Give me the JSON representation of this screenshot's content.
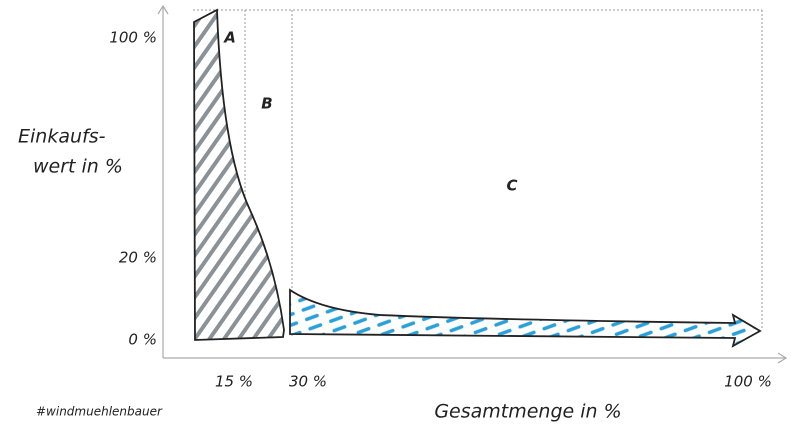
{
  "y_axis": {
    "label_lines": [
      "Einkaufs-",
      "wert in %"
    ],
    "ticks": [
      "100 %",
      "20 %",
      "0 %"
    ]
  },
  "x_axis": {
    "label": "Gesamtmenge in %",
    "ticks": [
      "15 %",
      "30 %",
      "100 %"
    ]
  },
  "zones": [
    "A",
    "B",
    "C"
  ],
  "footer": "#windmuehlenbauer"
}
